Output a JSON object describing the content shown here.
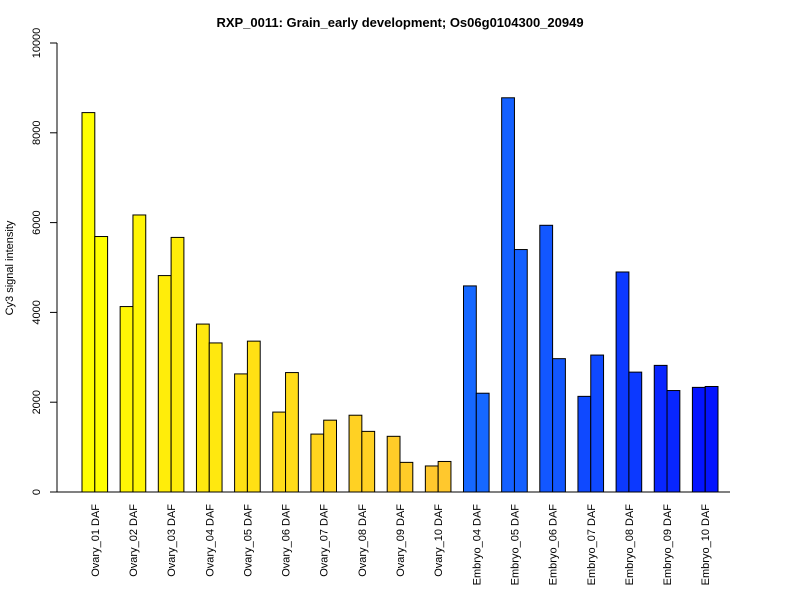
{
  "chart_data": {
    "type": "bar",
    "title": "RXP_0011: Grain_early development; Os06g0104300_20949",
    "xlabel": "",
    "ylabel": "Cy3 signal intensity",
    "ylim": [
      0,
      10000
    ],
    "yticks": [
      0,
      2000,
      4000,
      6000,
      8000,
      10000
    ],
    "grid": false,
    "categories": [
      "Ovary_01 DAF",
      "Ovary_02 DAF",
      "Ovary_03 DAF",
      "Ovary_04 DAF",
      "Ovary_05 DAF",
      "Ovary_06 DAF",
      "Ovary_07 DAF",
      "Ovary_08 DAF",
      "Ovary_09 DAF",
      "Ovary_10 DAF",
      "Embryo_04 DAF",
      "Embryo_05 DAF",
      "Embryo_06 DAF",
      "Embryo_07 DAF",
      "Embryo_08 DAF",
      "Embryo_09 DAF",
      "Embryo_10 DAF"
    ],
    "colors": [
      "#ffff00",
      "#fff505",
      "#ffed0a",
      "#ffe80f",
      "#ffe014",
      "#ffdc19",
      "#ffd51e",
      "#ffd123",
      "#ffcc28",
      "#ffc82d",
      "#1668ff",
      "#1460ff",
      "#1257ff",
      "#0f49ff",
      "#0c39ff",
      "#0826ff",
      "#0414ff"
    ],
    "series": [
      {
        "values": [
          8450,
          4130,
          4820,
          3740,
          2630,
          1780,
          1290,
          1710,
          1240,
          580,
          4590,
          8780,
          5940,
          2130,
          4900,
          2820,
          2330
        ]
      },
      {
        "values": [
          5690,
          6170,
          5670,
          3320,
          3360,
          2660,
          1600,
          1350,
          660,
          680,
          2200,
          5400,
          2970,
          3050,
          2670,
          2260,
          2350
        ]
      }
    ]
  }
}
